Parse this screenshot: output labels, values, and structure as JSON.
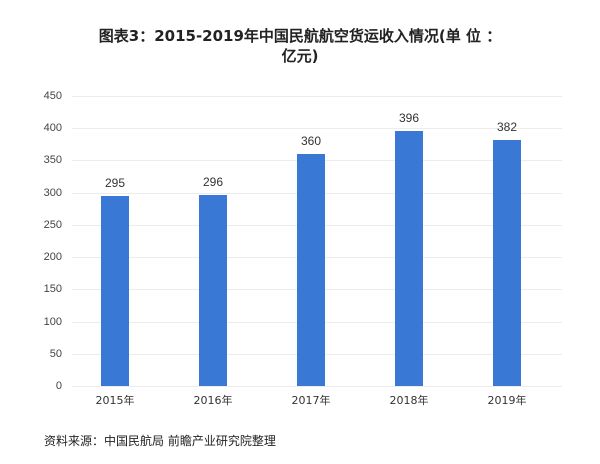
{
  "title_line1": "图表3：2015-2019年中国民航航空货运收入情况(单 位 ：",
  "title_line2": "亿元)",
  "source": "资料来源：中国民航局 前瞻产业研究院整理",
  "colors": {
    "bar": "#3a78d6",
    "grid": "#ececec"
  },
  "chart_data": {
    "type": "bar",
    "title": "图表3：2015-2019年中国民航航空货运收入情况(单位：亿元)",
    "categories": [
      "2015年",
      "2016年",
      "2017年",
      "2018年",
      "2019年"
    ],
    "values": [
      295,
      296,
      360,
      396,
      382
    ],
    "xlabel": "",
    "ylabel": "亿元",
    "ylim": [
      0,
      450
    ],
    "yticks": [
      0,
      50,
      100,
      150,
      200,
      250,
      300,
      350,
      400,
      450
    ],
    "grid": true,
    "legend": null
  }
}
